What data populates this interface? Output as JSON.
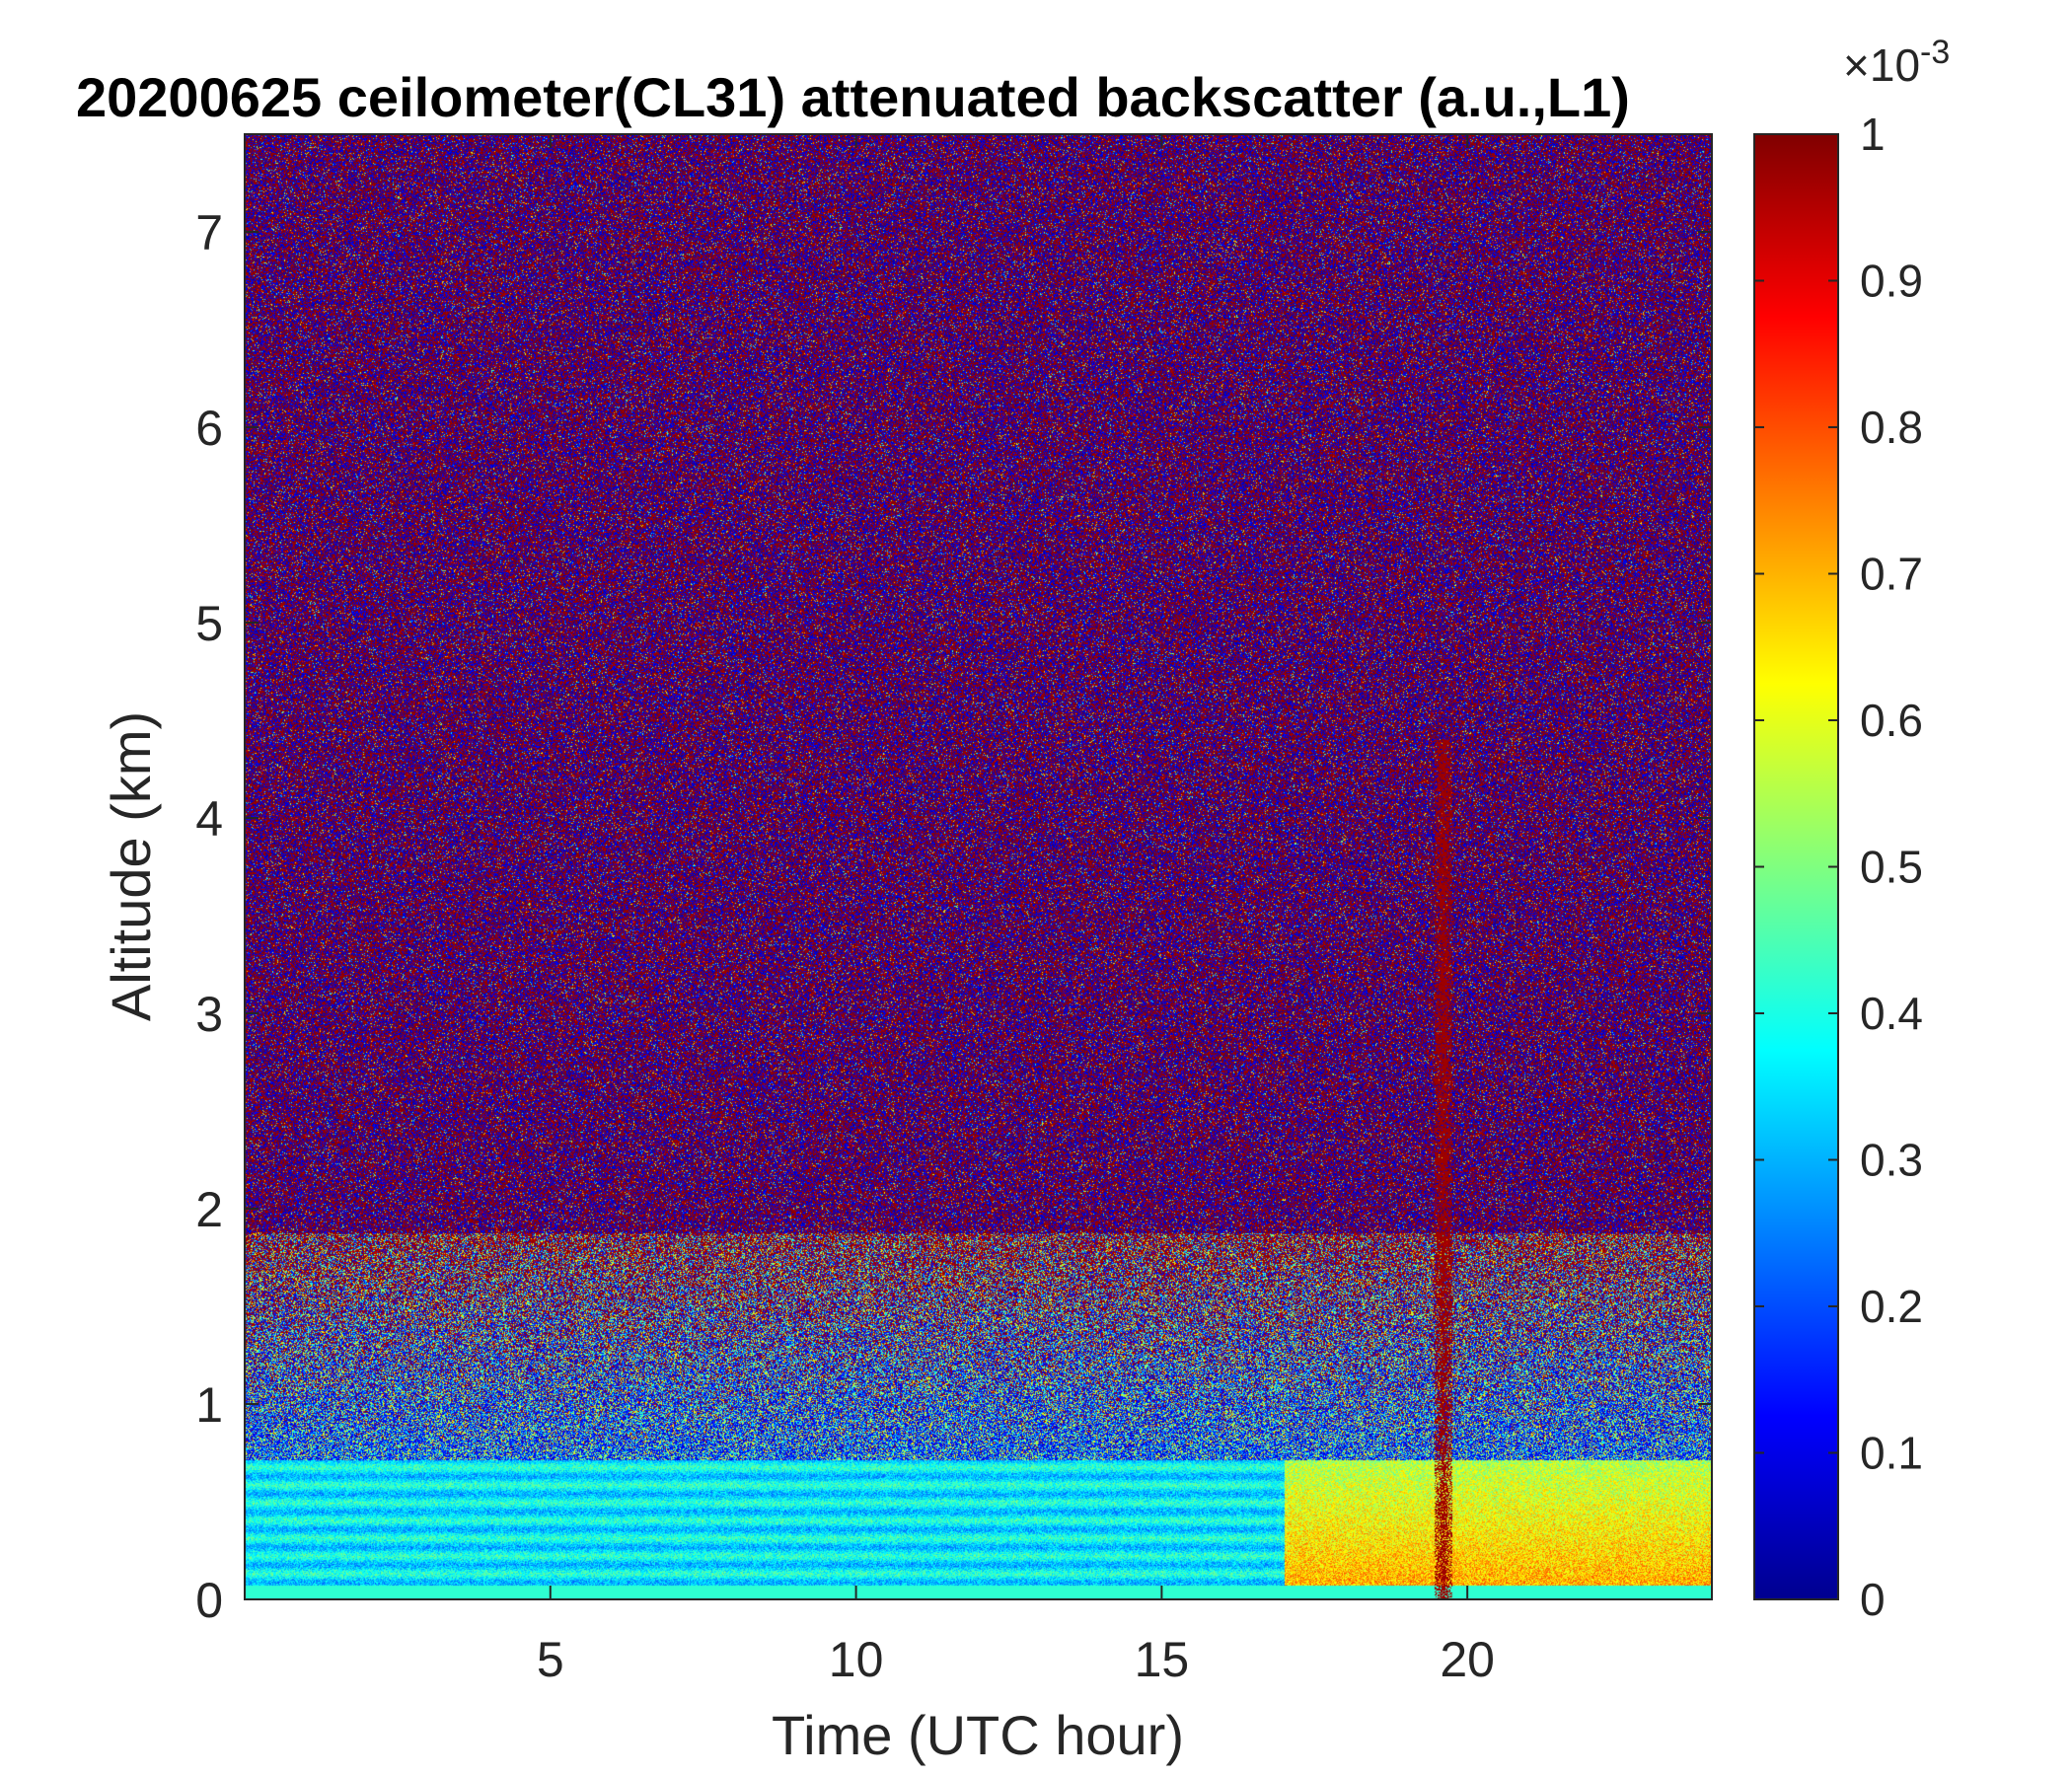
{
  "chart_data": {
    "type": "heatmap",
    "title": "20200625 ceilometer(CL31) attenuated backscatter (a.u.,L1)",
    "xlabel": "Time (UTC hour)",
    "ylabel": "Altitude (km)",
    "xlim": [
      0,
      24
    ],
    "ylim": [
      0,
      7.5
    ],
    "x_ticks": [
      5,
      10,
      15,
      20
    ],
    "y_ticks": [
      0,
      1,
      2,
      3,
      4,
      5,
      6,
      7
    ],
    "colorbar": {
      "colormap": "jet",
      "clim": [
        0,
        1
      ],
      "exponent_label": "×10",
      "exponent_value": "-3",
      "ticks": [
        0,
        0.1,
        0.2,
        0.3,
        0.4,
        0.5,
        0.6,
        0.7,
        0.8,
        0.9,
        1
      ],
      "colors": [
        "#00008f",
        "#0000ff",
        "#00ffff",
        "#ffff00",
        "#ff0000",
        "#800000"
      ]
    },
    "features": [
      {
        "description_code": "boundary_layer",
        "time_range": [
          0,
          24
        ],
        "altitude_range": [
          0,
          0.7
        ]
      },
      {
        "description_code": "enhanced_surface_layer",
        "time_range": [
          17,
          24
        ],
        "altitude_range": [
          0,
          0.5
        ]
      },
      {
        "description_code": "vertical_plume",
        "time": 19.6,
        "altitude_range": [
          0,
          4.4
        ]
      }
    ]
  }
}
